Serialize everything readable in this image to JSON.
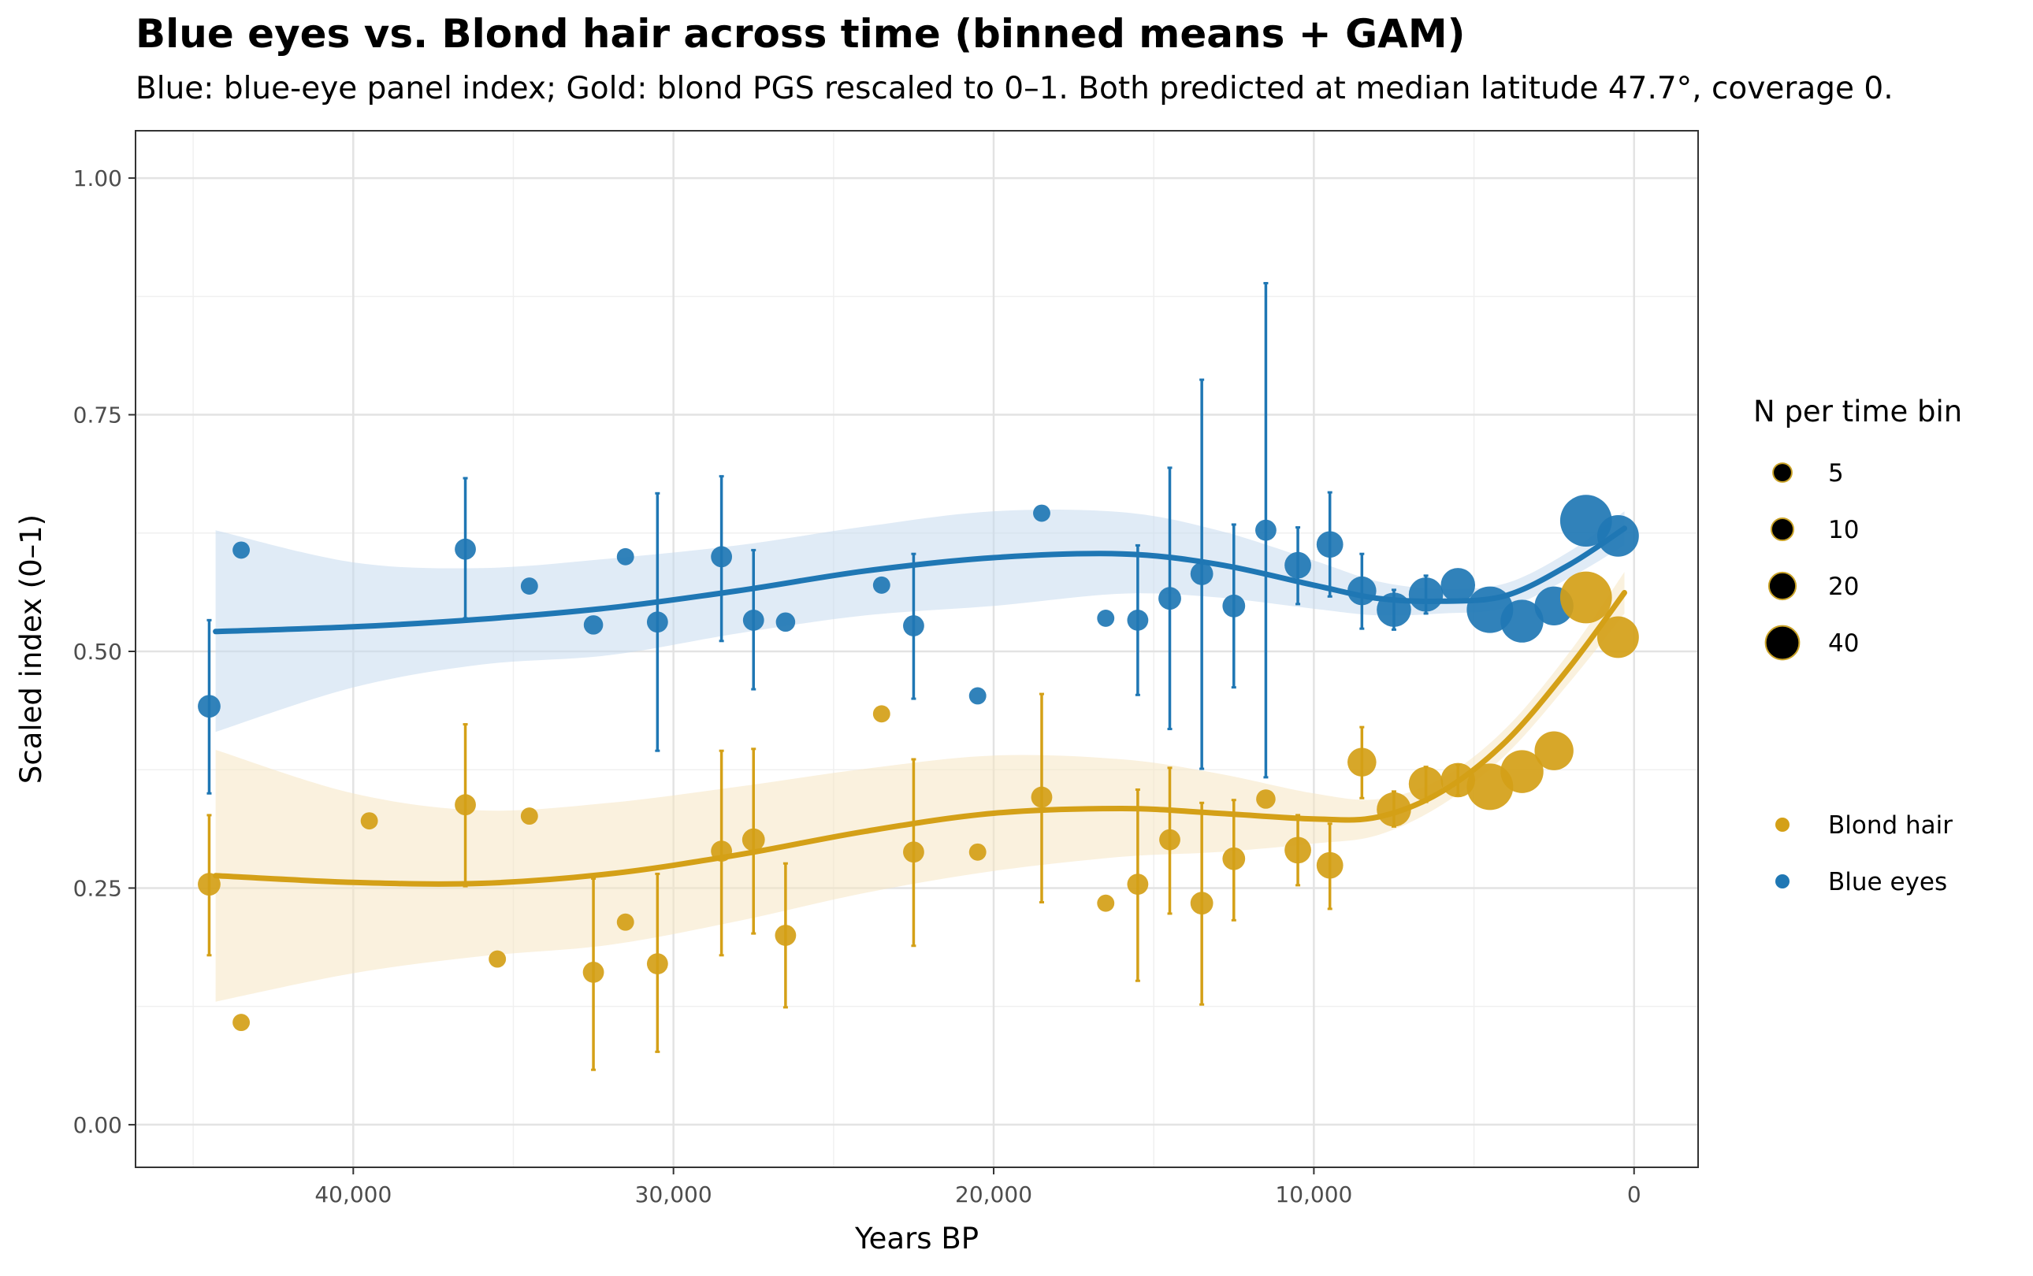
{
  "chart_data": {
    "type": "scatter",
    "title": "Blue eyes vs. Blond hair across time (binned means + GAM)",
    "subtitle": "Blue: blue-eye panel index; Gold: blond PGS rescaled to 0–1. Both predicted at median latitude 47.7°, coverage 0.",
    "xlabel": "Years BP",
    "ylabel": "Scaled index (0–1)",
    "xlim": [
      46800,
      -2000
    ],
    "x_reversed": true,
    "ylim": [
      -0.045,
      1.05
    ],
    "x_ticks": [
      40000,
      30000,
      20000,
      10000,
      0
    ],
    "x_tick_labels": [
      "40,000",
      "30,000",
      "20,000",
      "10,000",
      "0"
    ],
    "y_ticks": [
      0,
      0.25,
      0.5,
      0.75,
      1.0
    ],
    "y_tick_labels": [
      "0.00",
      "0.25",
      "0.50",
      "0.75",
      "1.00"
    ],
    "grid": true,
    "size_legend": {
      "title": "N per time bin",
      "entries": [
        {
          "label": "5",
          "n": 5
        },
        {
          "label": "10",
          "n": 10
        },
        {
          "label": "20",
          "n": 20
        },
        {
          "label": "40",
          "n": 40
        }
      ]
    },
    "color_legend": {
      "placement": "right",
      "entries": [
        {
          "label": "Blond hair",
          "color": "#D4A017"
        },
        {
          "label": "Blue eyes",
          "color": "#1F77B4"
        }
      ]
    },
    "series": [
      {
        "name": "Blue eyes",
        "color": "#1F77B4",
        "band_color": "#C6DBEF",
        "points": [
          {
            "x": 44500,
            "y": 0.442,
            "lo": 0.35,
            "hi": 0.533,
            "n": 5
          },
          {
            "x": 43500,
            "y": 0.607,
            "n": 2
          },
          {
            "x": 36500,
            "y": 0.608,
            "lo": 0.535,
            "hi": 0.683,
            "n": 4
          },
          {
            "x": 34500,
            "y": 0.569,
            "n": 2
          },
          {
            "x": 32500,
            "y": 0.528,
            "n": 3
          },
          {
            "x": 31500,
            "y": 0.6,
            "n": 2
          },
          {
            "x": 30500,
            "y": 0.531,
            "lo": 0.395,
            "hi": 0.667,
            "n": 4
          },
          {
            "x": 28500,
            "y": 0.6,
            "lo": 0.511,
            "hi": 0.685,
            "n": 4
          },
          {
            "x": 27500,
            "y": 0.533,
            "lo": 0.46,
            "hi": 0.607,
            "n": 4
          },
          {
            "x": 26500,
            "y": 0.531,
            "n": 3
          },
          {
            "x": 23500,
            "y": 0.57,
            "n": 2
          },
          {
            "x": 22500,
            "y": 0.527,
            "lo": 0.45,
            "hi": 0.603,
            "n": 4
          },
          {
            "x": 20500,
            "y": 0.453,
            "n": 2
          },
          {
            "x": 18500,
            "y": 0.646,
            "n": 2
          },
          {
            "x": 16500,
            "y": 0.535,
            "n": 2
          },
          {
            "x": 15500,
            "y": 0.533,
            "lo": 0.454,
            "hi": 0.612,
            "n": 4
          },
          {
            "x": 14500,
            "y": 0.556,
            "lo": 0.418,
            "hi": 0.694,
            "n": 5
          },
          {
            "x": 13500,
            "y": 0.582,
            "lo": 0.376,
            "hi": 0.787,
            "n": 5
          },
          {
            "x": 12500,
            "y": 0.548,
            "lo": 0.462,
            "hi": 0.634,
            "n": 5
          },
          {
            "x": 11500,
            "y": 0.628,
            "lo": 0.367,
            "hi": 0.889,
            "n": 4
          },
          {
            "x": 10500,
            "y": 0.591,
            "lo": 0.55,
            "hi": 0.631,
            "n": 8
          },
          {
            "x": 9500,
            "y": 0.613,
            "lo": 0.558,
            "hi": 0.668,
            "n": 8
          },
          {
            "x": 8500,
            "y": 0.564,
            "lo": 0.524,
            "hi": 0.603,
            "n": 10
          },
          {
            "x": 7500,
            "y": 0.544,
            "lo": 0.523,
            "hi": 0.565,
            "n": 16
          },
          {
            "x": 6500,
            "y": 0.56,
            "lo": 0.54,
            "hi": 0.58,
            "n": 16
          },
          {
            "x": 5500,
            "y": 0.57,
            "n": 16
          },
          {
            "x": 4500,
            "y": 0.544,
            "n": 34
          },
          {
            "x": 3500,
            "y": 0.532,
            "n": 28
          },
          {
            "x": 2500,
            "y": 0.548,
            "n": 22
          },
          {
            "x": 1500,
            "y": 0.638,
            "n": 44
          },
          {
            "x": 500,
            "y": 0.622,
            "n": 26
          }
        ],
        "gam_fit": [
          {
            "x": 44300,
            "y": 0.521,
            "lo": 0.415,
            "hi": 0.628
          },
          {
            "x": 40000,
            "y": 0.526,
            "lo": 0.462,
            "hi": 0.594
          },
          {
            "x": 36000,
            "y": 0.534,
            "lo": 0.486,
            "hi": 0.588
          },
          {
            "x": 32000,
            "y": 0.546,
            "lo": 0.496,
            "hi": 0.598
          },
          {
            "x": 28000,
            "y": 0.564,
            "lo": 0.519,
            "hi": 0.612
          },
          {
            "x": 24000,
            "y": 0.585,
            "lo": 0.538,
            "hi": 0.632
          },
          {
            "x": 20000,
            "y": 0.599,
            "lo": 0.548,
            "hi": 0.648
          },
          {
            "x": 16000,
            "y": 0.603,
            "lo": 0.561,
            "hi": 0.647
          },
          {
            "x": 13000,
            "y": 0.592,
            "lo": 0.557,
            "hi": 0.628
          },
          {
            "x": 10000,
            "y": 0.57,
            "lo": 0.545,
            "hi": 0.596
          },
          {
            "x": 8000,
            "y": 0.556,
            "lo": 0.538,
            "hi": 0.574
          },
          {
            "x": 6000,
            "y": 0.553,
            "lo": 0.54,
            "hi": 0.566
          },
          {
            "x": 4000,
            "y": 0.559,
            "lo": 0.546,
            "hi": 0.572
          },
          {
            "x": 2000,
            "y": 0.592,
            "lo": 0.578,
            "hi": 0.606
          },
          {
            "x": 300,
            "y": 0.63,
            "lo": 0.612,
            "hi": 0.648
          }
        ]
      },
      {
        "name": "Blond hair",
        "color": "#D4A017",
        "band_color": "#F6E6C2",
        "points": [
          {
            "x": 44500,
            "y": 0.254,
            "lo": 0.179,
            "hi": 0.327,
            "n": 5
          },
          {
            "x": 43500,
            "y": 0.108,
            "n": 2
          },
          {
            "x": 39500,
            "y": 0.321,
            "n": 2
          },
          {
            "x": 36500,
            "y": 0.338,
            "lo": 0.252,
            "hi": 0.423,
            "n": 4
          },
          {
            "x": 35500,
            "y": 0.175,
            "n": 2
          },
          {
            "x": 34500,
            "y": 0.326,
            "n": 2
          },
          {
            "x": 32500,
            "y": 0.161,
            "lo": 0.058,
            "hi": 0.26,
            "n": 4
          },
          {
            "x": 31500,
            "y": 0.214,
            "n": 2
          },
          {
            "x": 30500,
            "y": 0.17,
            "lo": 0.077,
            "hi": 0.265,
            "n": 4
          },
          {
            "x": 28500,
            "y": 0.289,
            "lo": 0.179,
            "hi": 0.395,
            "n": 4
          },
          {
            "x": 27500,
            "y": 0.301,
            "lo": 0.202,
            "hi": 0.397,
            "n": 5
          },
          {
            "x": 26500,
            "y": 0.2,
            "lo": 0.124,
            "hi": 0.276,
            "n": 4
          },
          {
            "x": 23500,
            "y": 0.434,
            "n": 2
          },
          {
            "x": 22500,
            "y": 0.288,
            "lo": 0.189,
            "hi": 0.386,
            "n": 4
          },
          {
            "x": 20500,
            "y": 0.288,
            "n": 2
          },
          {
            "x": 18500,
            "y": 0.346,
            "lo": 0.235,
            "hi": 0.455,
            "n": 4
          },
          {
            "x": 16500,
            "y": 0.234,
            "n": 2
          },
          {
            "x": 15500,
            "y": 0.254,
            "lo": 0.152,
            "hi": 0.354,
            "n": 4
          },
          {
            "x": 14500,
            "y": 0.301,
            "lo": 0.223,
            "hi": 0.377,
            "n": 4
          },
          {
            "x": 13500,
            "y": 0.234,
            "lo": 0.127,
            "hi": 0.34,
            "n": 5
          },
          {
            "x": 12500,
            "y": 0.281,
            "lo": 0.216,
            "hi": 0.343,
            "n": 5
          },
          {
            "x": 11500,
            "y": 0.344,
            "n": 3
          },
          {
            "x": 10500,
            "y": 0.29,
            "lo": 0.253,
            "hi": 0.327,
            "n": 8
          },
          {
            "x": 9500,
            "y": 0.274,
            "lo": 0.228,
            "hi": 0.318,
            "n": 8
          },
          {
            "x": 8500,
            "y": 0.383,
            "lo": 0.345,
            "hi": 0.42,
            "n": 10
          },
          {
            "x": 7500,
            "y": 0.333,
            "lo": 0.315,
            "hi": 0.352,
            "n": 16
          },
          {
            "x": 6500,
            "y": 0.36,
            "lo": 0.341,
            "hi": 0.378,
            "n": 16
          },
          {
            "x": 5500,
            "y": 0.364,
            "lo": 0.348,
            "hi": 0.38,
            "n": 16
          },
          {
            "x": 4500,
            "y": 0.357,
            "n": 34
          },
          {
            "x": 3500,
            "y": 0.373,
            "n": 28
          },
          {
            "x": 2500,
            "y": 0.395,
            "n": 22
          },
          {
            "x": 1500,
            "y": 0.557,
            "n": 44
          },
          {
            "x": 500,
            "y": 0.515,
            "n": 26
          }
        ],
        "gam_fit": [
          {
            "x": 44300,
            "y": 0.263,
            "lo": 0.13,
            "hi": 0.396
          },
          {
            "x": 40000,
            "y": 0.256,
            "lo": 0.16,
            "hi": 0.35
          },
          {
            "x": 36000,
            "y": 0.255,
            "lo": 0.178,
            "hi": 0.332
          },
          {
            "x": 32000,
            "y": 0.265,
            "lo": 0.19,
            "hi": 0.34
          },
          {
            "x": 28000,
            "y": 0.285,
            "lo": 0.215,
            "hi": 0.357
          },
          {
            "x": 24000,
            "y": 0.31,
            "lo": 0.245,
            "hi": 0.376
          },
          {
            "x": 20000,
            "y": 0.329,
            "lo": 0.268,
            "hi": 0.39
          },
          {
            "x": 16000,
            "y": 0.334,
            "lo": 0.283,
            "hi": 0.386
          },
          {
            "x": 13000,
            "y": 0.329,
            "lo": 0.288,
            "hi": 0.371
          },
          {
            "x": 10000,
            "y": 0.323,
            "lo": 0.297,
            "hi": 0.35
          },
          {
            "x": 8000,
            "y": 0.325,
            "lo": 0.306,
            "hi": 0.344
          },
          {
            "x": 6000,
            "y": 0.352,
            "lo": 0.338,
            "hi": 0.366
          },
          {
            "x": 4000,
            "y": 0.405,
            "lo": 0.391,
            "hi": 0.419
          },
          {
            "x": 2000,
            "y": 0.484,
            "lo": 0.468,
            "hi": 0.5
          },
          {
            "x": 300,
            "y": 0.562,
            "lo": 0.54,
            "hi": 0.584
          }
        ]
      }
    ]
  }
}
